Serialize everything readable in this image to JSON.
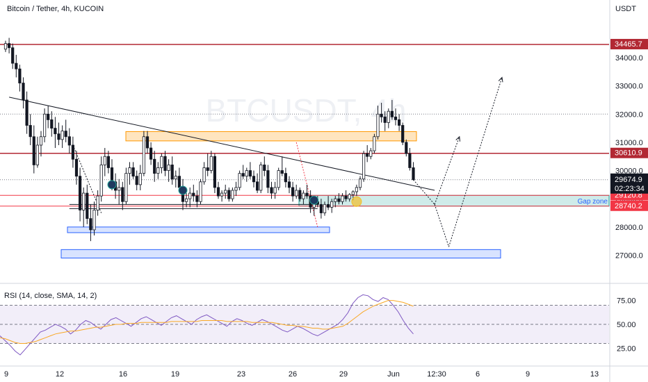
{
  "chart_data": [
    {
      "type": "candlestick",
      "title": "Bitcoin / Tether, 4h, KUCOIN",
      "currency": "USDT",
      "watermark": "BTCUSDT, 4h",
      "ylim": [
        26200,
        35500
      ],
      "y_ticks": [
        27000.0,
        28000.0,
        29000.0,
        30000.0,
        31000.0,
        32000.0,
        33000.0,
        34000.0
      ],
      "y_tick_labels": [
        "27000.0",
        "28000.0",
        "29000.0",
        "30000.0",
        "31000.0",
        "32000.0",
        "33000.0",
        "34000.0"
      ],
      "x_tick_labels": [
        "9",
        "12",
        "16",
        "19",
        "23",
        "26",
        "29",
        "Jun",
        "12:30",
        "6",
        "9",
        "13"
      ],
      "last_price": 29674.9,
      "last_price_label": "29674.9",
      "countdown": "02:23:34",
      "horizontal_levels": [
        {
          "value": 34465.7,
          "label": "34465.7",
          "color": "#b22833"
        },
        {
          "value": 30610.9,
          "label": "30610.9",
          "color": "#b22833"
        },
        {
          "value": 29120.8,
          "label": "29120.8",
          "color": "#f23645"
        },
        {
          "value": 28740.2,
          "label": "28740.2",
          "color": "#f23645"
        }
      ],
      "zones": [
        {
          "name": "Gap zone",
          "label": "Gap zone",
          "low": 28740.2,
          "high": 29120.8,
          "color": "#26a69a"
        },
        {
          "name": "supply",
          "label": "",
          "low": 31050,
          "high": 31380,
          "color": "#ff9800"
        },
        {
          "name": "demand-1",
          "label": "",
          "low": 27800,
          "high": 28000,
          "color": "#2962ff"
        },
        {
          "name": "demand-2",
          "label": "",
          "low": 26900,
          "high": 27200,
          "color": "#2962ff"
        }
      ],
      "candles": [
        [
          34300,
          34600,
          34200,
          34500
        ],
        [
          34500,
          34700,
          34150,
          34350
        ],
        [
          34350,
          34500,
          33600,
          33800
        ],
        [
          33800,
          34100,
          33300,
          33600
        ],
        [
          33600,
          33750,
          32800,
          33100
        ],
        [
          33100,
          33300,
          32200,
          32500
        ],
        [
          32500,
          32800,
          31300,
          31600
        ],
        [
          31600,
          32000,
          30900,
          31200
        ],
        [
          31200,
          31600,
          29900,
          30200
        ],
        [
          30200,
          31200,
          30100,
          30900
        ],
        [
          30900,
          31400,
          30500,
          31200
        ],
        [
          31200,
          32200,
          31000,
          32000
        ],
        [
          32000,
          32300,
          31500,
          31800
        ],
        [
          31800,
          32100,
          31200,
          31500
        ],
        [
          31500,
          31900,
          30800,
          31300
        ],
        [
          31300,
          31700,
          30900,
          31100
        ],
        [
          31100,
          31600,
          30800,
          31400
        ],
        [
          31400,
          31800,
          31000,
          31200
        ],
        [
          31200,
          31500,
          30600,
          30900
        ],
        [
          30900,
          31200,
          30100,
          30400
        ],
        [
          30400,
          30700,
          29500,
          29800
        ],
        [
          29800,
          30100,
          28200,
          28600
        ],
        [
          28600,
          29400,
          28000,
          29200
        ],
        [
          29200,
          29500,
          28100,
          28300
        ],
        [
          28300,
          28800,
          27500,
          27900
        ],
        [
          27900,
          28900,
          27700,
          28600
        ],
        [
          28600,
          29300,
          28400,
          29100
        ],
        [
          29100,
          30500,
          28900,
          30200
        ],
        [
          30200,
          30800,
          29800,
          30500
        ],
        [
          30500,
          30700,
          29900,
          30100
        ],
        [
          30100,
          30400,
          29300,
          29600
        ],
        [
          29600,
          29900,
          29000,
          29300
        ],
        [
          29300,
          29700,
          28800,
          29400
        ],
        [
          29400,
          29600,
          28600,
          28900
        ],
        [
          28900,
          30100,
          28800,
          29900
        ],
        [
          29900,
          30300,
          29500,
          30100
        ],
        [
          30100,
          30300,
          29700,
          29800
        ],
        [
          29800,
          30000,
          29300,
          29500
        ],
        [
          29500,
          30200,
          29300,
          29900
        ],
        [
          29900,
          31400,
          29800,
          31200
        ],
        [
          31200,
          31400,
          30600,
          30800
        ],
        [
          30800,
          31000,
          30200,
          30400
        ],
        [
          30400,
          30700,
          29600,
          29900
        ],
        [
          29900,
          30300,
          29700,
          30100
        ],
        [
          30100,
          30600,
          29900,
          30500
        ],
        [
          30500,
          30700,
          29800,
          30000
        ],
        [
          30000,
          30400,
          29600,
          30200
        ],
        [
          30200,
          30500,
          29500,
          29700
        ],
        [
          29700,
          30000,
          29400,
          29800
        ],
        [
          29800,
          30100,
          29300,
          29400
        ],
        [
          29400,
          29700,
          28600,
          28900
        ],
        [
          28900,
          29200,
          28700,
          29000
        ],
        [
          29000,
          29400,
          28700,
          29200
        ],
        [
          29200,
          29500,
          28900,
          29100
        ],
        [
          29100,
          29300,
          28700,
          28900
        ],
        [
          28900,
          29700,
          28800,
          29600
        ],
        [
          29600,
          30300,
          29500,
          30100
        ],
        [
          30100,
          30600,
          29800,
          30000
        ],
        [
          30000,
          30700,
          29900,
          30500
        ],
        [
          30500,
          30600,
          29200,
          29400
        ],
        [
          29400,
          29600,
          29000,
          29100
        ],
        [
          29100,
          29300,
          28900,
          29200
        ],
        [
          29200,
          29500,
          29000,
          29300
        ],
        [
          29300,
          29400,
          28900,
          29000
        ],
        [
          29000,
          29400,
          28900,
          29300
        ],
        [
          29300,
          29600,
          29100,
          29400
        ],
        [
          29400,
          30000,
          29300,
          29900
        ],
        [
          29900,
          30200,
          29700,
          29800
        ],
        [
          29800,
          30100,
          29600,
          30000
        ],
        [
          30000,
          30300,
          29700,
          29800
        ],
        [
          29800,
          30000,
          29400,
          29600
        ],
        [
          29600,
          29900,
          29200,
          29300
        ],
        [
          29300,
          30300,
          29200,
          30200
        ],
        [
          30200,
          30500,
          29800,
          30000
        ],
        [
          30000,
          30200,
          29200,
          29400
        ],
        [
          29400,
          29600,
          29000,
          29200
        ],
        [
          29200,
          29600,
          29000,
          29400
        ],
        [
          29400,
          30100,
          29300,
          30000
        ],
        [
          30000,
          30500,
          29800,
          29900
        ],
        [
          29900,
          30100,
          29400,
          29600
        ],
        [
          29600,
          29800,
          29200,
          29400
        ],
        [
          29400,
          29600,
          28900,
          29100
        ],
        [
          29100,
          29500,
          29000,
          29300
        ],
        [
          29300,
          29400,
          28900,
          29000
        ],
        [
          29000,
          29300,
          28800,
          29200
        ],
        [
          29200,
          29500,
          29000,
          29100
        ],
        [
          29100,
          29300,
          28500,
          28700
        ],
        [
          28700,
          29000,
          28400,
          28900
        ],
        [
          28900,
          29100,
          28700,
          28800
        ],
        [
          28800,
          29000,
          28300,
          28500
        ],
        [
          28500,
          28900,
          28400,
          28800
        ],
        [
          28800,
          29100,
          28600,
          28700
        ],
        [
          28700,
          29000,
          28500,
          28900
        ],
        [
          28900,
          29100,
          28700,
          29000
        ],
        [
          29000,
          29200,
          28800,
          28900
        ],
        [
          28900,
          29200,
          28800,
          29100
        ],
        [
          29100,
          29300,
          28900,
          29000
        ],
        [
          29000,
          29200,
          28900,
          29150
        ],
        [
          29150,
          29300,
          28950,
          29250
        ],
        [
          29250,
          29500,
          29100,
          29400
        ],
        [
          29400,
          29800,
          29300,
          29700
        ],
        [
          29700,
          30700,
          29600,
          30600
        ],
        [
          30600,
          30900,
          30300,
          30500
        ],
        [
          30500,
          30800,
          30400,
          30700
        ],
        [
          30700,
          31300,
          30600,
          31200
        ],
        [
          31200,
          32300,
          31100,
          32000
        ],
        [
          32000,
          32400,
          31700,
          31900
        ],
        [
          31900,
          32100,
          31400,
          31700
        ],
        [
          31700,
          32200,
          31500,
          32100
        ],
        [
          32100,
          32500,
          31800,
          31900
        ],
        [
          31900,
          32200,
          31600,
          31800
        ],
        [
          31800,
          32000,
          31400,
          31600
        ],
        [
          31600,
          31700,
          30900,
          31000
        ],
        [
          31000,
          31100,
          30500,
          30600
        ],
        [
          30600,
          30800,
          30000,
          30100
        ],
        [
          30100,
          30300,
          29650,
          29675
        ]
      ],
      "projection": {
        "name": "projected path",
        "points": [
          {
            "index": 115,
            "value": 29674.9
          },
          {
            "index": 121,
            "value": 28800
          },
          {
            "index": 128,
            "value": 31200
          },
          {
            "index": 125,
            "value": 27300
          },
          {
            "index": 140,
            "value": 33300
          }
        ]
      },
      "trendline": {
        "start": {
          "index": 1,
          "value": 32600
        },
        "end": {
          "index": 121,
          "value": 29300
        }
      },
      "base_lines": [
        {
          "from_index": 18,
          "to_index": 88,
          "value": 28650
        },
        {
          "from_index": 18,
          "to_index": 88,
          "value": 28800
        }
      ]
    },
    {
      "type": "line",
      "title": "RSI (14, close, SMA, 14, 2)",
      "ylim": [
        10,
        90
      ],
      "y_ticks": [
        25,
        50,
        75
      ],
      "y_tick_labels": [
        "25.00",
        "50.00",
        "75.00"
      ],
      "levels": [
        70,
        50,
        30
      ],
      "band": [
        30,
        70
      ],
      "series": [
        {
          "name": "RSI",
          "color": "#7e57c2",
          "values": [
            38,
            33,
            28,
            22,
            18,
            24,
            30,
            36,
            42,
            44,
            47,
            50,
            48,
            45,
            40,
            44,
            50,
            54,
            52,
            48,
            45,
            50,
            55,
            57,
            54,
            51,
            48,
            52,
            56,
            58,
            55,
            52,
            49,
            53,
            57,
            59,
            56,
            53,
            50,
            55,
            58,
            60,
            57,
            54,
            51,
            48,
            53,
            56,
            54,
            51,
            49,
            52,
            55,
            53,
            50,
            47,
            44,
            42,
            45,
            48,
            46,
            43,
            40,
            38,
            41,
            44,
            47,
            50,
            55,
            62,
            72,
            78,
            81,
            80,
            76,
            74,
            78,
            76,
            70,
            63,
            54,
            46,
            40
          ]
        },
        {
          "name": "RSI-based MA",
          "color": "#f9a825",
          "values": [
            36,
            35,
            33,
            31,
            30,
            30,
            31,
            32,
            34,
            36,
            38,
            40,
            41,
            42,
            43,
            43,
            44,
            45,
            46,
            47,
            47,
            48,
            49,
            50,
            50,
            51,
            51,
            51,
            52,
            52,
            52,
            52,
            52,
            52,
            53,
            53,
            53,
            53,
            53,
            53,
            54,
            54,
            54,
            54,
            54,
            53,
            53,
            53,
            53,
            53,
            52,
            52,
            52,
            52,
            52,
            51,
            50,
            49,
            49,
            48,
            48,
            47,
            46,
            46,
            45,
            45,
            46,
            47,
            48,
            51,
            55,
            59,
            63,
            66,
            69,
            71,
            73,
            75,
            75,
            74,
            73,
            71,
            69
          ]
        }
      ]
    }
  ]
}
